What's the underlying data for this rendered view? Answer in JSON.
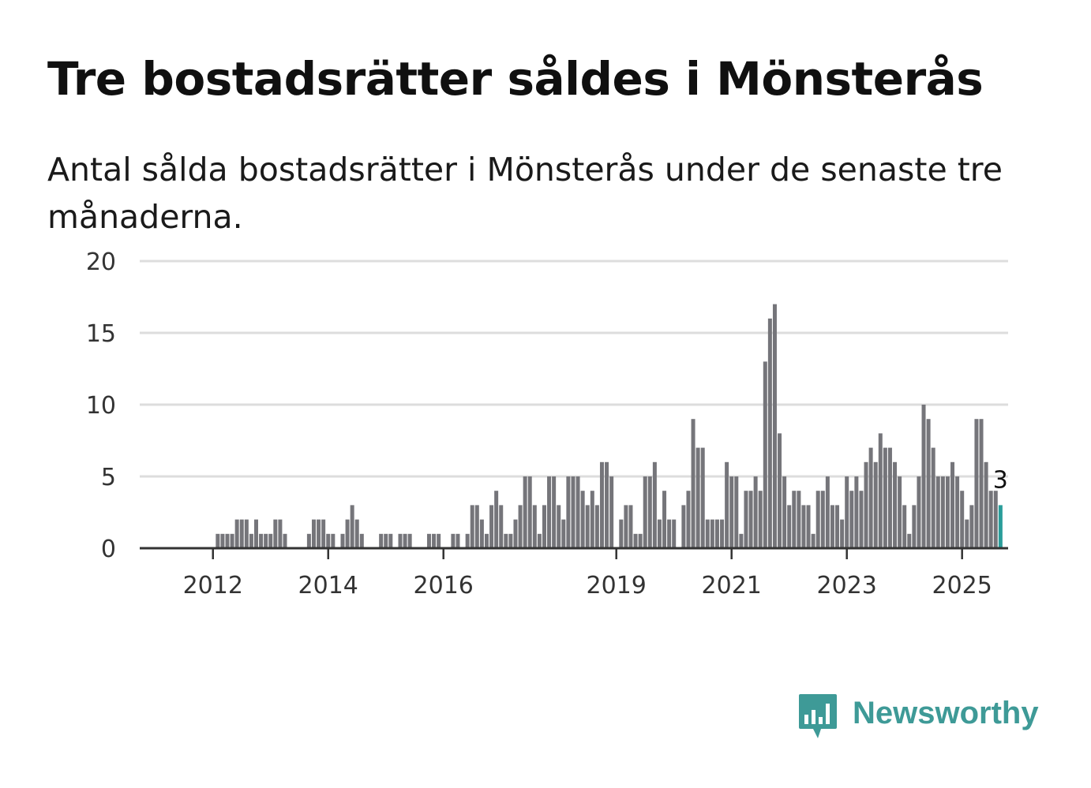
{
  "title": "Tre bostadsrätter såldes i Mönsterås",
  "subtitle": "Antal sålda bostadsrätter i Mönsterås under de senaste tre månaderna.",
  "brand": {
    "name": "Newsworthy",
    "icon": "bar-chart-speech-bubble-icon",
    "color": "#3e9a97"
  },
  "colors": {
    "bar": "#75757a",
    "highlight": "#2a9d9a",
    "grid": "#dddddd",
    "axis": "#333333"
  },
  "chart_data": {
    "type": "bar",
    "title": "Tre bostadsrätter såldes i Mönsterås",
    "xlabel": "",
    "ylabel": "",
    "ylim": [
      0,
      20
    ],
    "yticks": [
      0,
      5,
      10,
      15,
      20
    ],
    "grid": true,
    "x_tick_labels": [
      {
        "label": "2012",
        "index": 9
      },
      {
        "label": "2014",
        "index": 33
      },
      {
        "label": "2016",
        "index": 57
      },
      {
        "label": "2019",
        "index": 93
      },
      {
        "label": "2021",
        "index": 117
      },
      {
        "label": "2023",
        "index": 141
      },
      {
        "label": "2025",
        "index": 165
      }
    ],
    "highlight_index": 173,
    "highlight_label": "3",
    "values": [
      0,
      0,
      0,
      0,
      0,
      0,
      0,
      0,
      0,
      0,
      1,
      1,
      1,
      1,
      2,
      2,
      2,
      1,
      2,
      1,
      1,
      1,
      2,
      2,
      1,
      0,
      0,
      0,
      0,
      1,
      2,
      2,
      2,
      1,
      1,
      0,
      1,
      2,
      3,
      2,
      1,
      0,
      0,
      0,
      1,
      1,
      1,
      0,
      1,
      1,
      1,
      0,
      0,
      0,
      1,
      1,
      1,
      0,
      0,
      1,
      1,
      0,
      1,
      3,
      3,
      2,
      1,
      3,
      4,
      3,
      1,
      1,
      2,
      3,
      5,
      5,
      3,
      1,
      3,
      5,
      5,
      3,
      2,
      5,
      5,
      5,
      4,
      3,
      4,
      3,
      6,
      6,
      5,
      0,
      2,
      3,
      3,
      1,
      1,
      5,
      5,
      6,
      2,
      4,
      2,
      2,
      0,
      3,
      4,
      9,
      7,
      7,
      2,
      2,
      2,
      2,
      6,
      5,
      5,
      1,
      4,
      4,
      5,
      4,
      13,
      16,
      17,
      8,
      5,
      3,
      4,
      4,
      3,
      3,
      1,
      4,
      4,
      5,
      3,
      3,
      2,
      5,
      4,
      5,
      4,
      6,
      7,
      6,
      8,
      7,
      7,
      6,
      5,
      3,
      1,
      3,
      5,
      10,
      9,
      7,
      5,
      5,
      5,
      6,
      5,
      4,
      2,
      3,
      9,
      9,
      6,
      4,
      4,
      3
    ]
  }
}
